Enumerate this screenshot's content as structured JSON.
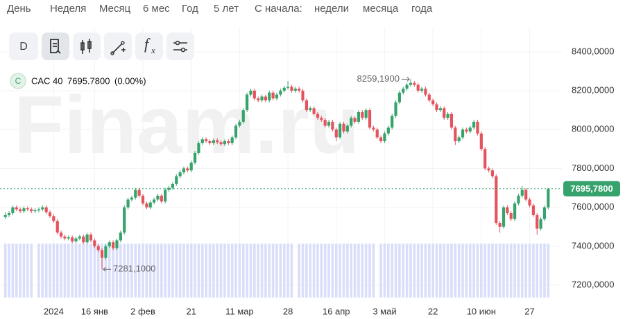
{
  "nav": {
    "items": [
      "День",
      "Неделя",
      "Месяц",
      "6 мес",
      "Год",
      "5 лет"
    ],
    "since": "С начала:",
    "since_items": [
      "недели",
      "месяца",
      "года"
    ]
  },
  "toolbar": {
    "d": "D",
    "fx_f": "f",
    "fx_x": "x"
  },
  "legend": {
    "badge": "C",
    "symbol": "CAC 40",
    "price": "7695.7800",
    "change": "(0.00%)"
  },
  "watermark": "Finam.ru",
  "chart_data": {
    "type": "candlestick",
    "up_color": "#35a36b",
    "down_color": "#e5535d",
    "volume_color": "#d9defa",
    "grid": true,
    "ylim": [
      7136,
      8524
    ],
    "yticks": [
      {
        "value": 7200,
        "label": "7200,0000"
      },
      {
        "value": 7400,
        "label": "7400,0000"
      },
      {
        "value": 7600,
        "label": "7600,0000"
      },
      {
        "value": 7800,
        "label": "7800,0000"
      },
      {
        "value": 8000,
        "label": "8000,0000"
      },
      {
        "value": 8200,
        "label": "8200,0000"
      },
      {
        "value": 8400,
        "label": "8400,0000"
      }
    ],
    "last": {
      "value": 7695.78,
      "label": "7695,7800",
      "color": "#35a36b"
    },
    "annotations": [
      {
        "index": 109,
        "value": 8259.19,
        "label": "8259,1900"
      },
      {
        "index": 26,
        "value": 7281.1,
        "label": "7281,1000"
      }
    ],
    "categories": [
      null,
      null,
      null,
      null,
      null,
      null,
      null,
      null,
      null,
      null,
      null,
      null,
      null,
      "2024",
      null,
      null,
      null,
      null,
      null,
      null,
      null,
      null,
      null,
      null,
      "16 янв",
      null,
      null,
      null,
      null,
      null,
      null,
      null,
      null,
      null,
      null,
      null,
      null,
      "2 фев",
      null,
      null,
      null,
      null,
      null,
      null,
      null,
      null,
      null,
      null,
      null,
      null,
      "21",
      null,
      null,
      null,
      null,
      null,
      null,
      null,
      null,
      null,
      null,
      null,
      null,
      "11 мар",
      null,
      null,
      null,
      null,
      null,
      null,
      null,
      null,
      null,
      null,
      null,
      null,
      "28",
      null,
      null,
      null,
      null,
      null,
      null,
      null,
      null,
      null,
      null,
      null,
      null,
      "16 апр",
      null,
      null,
      null,
      null,
      null,
      null,
      null,
      null,
      null,
      null,
      null,
      null,
      "3 май",
      null,
      null,
      null,
      null,
      null,
      null,
      null,
      null,
      null,
      null,
      null,
      null,
      "22",
      null,
      null,
      null,
      null,
      null,
      null,
      null,
      null,
      null,
      null,
      null,
      null,
      "10 июн",
      null,
      null,
      null,
      null,
      null,
      null,
      null,
      null,
      null,
      null,
      null,
      null,
      "27",
      null,
      null,
      null,
      null,
      null
    ],
    "ohlc": [
      [
        7550,
        7575,
        7540,
        7560
      ],
      [
        7560,
        7580,
        7550,
        7570
      ],
      [
        7570,
        7610,
        7560,
        7600
      ],
      [
        7600,
        7610,
        7580,
        7590
      ],
      [
        7590,
        7600,
        7570,
        7580
      ],
      [
        7580,
        7605,
        7570,
        7595
      ],
      [
        7595,
        7605,
        7580,
        7590
      ],
      [
        7590,
        7600,
        7570,
        7580
      ],
      [
        7580,
        7595,
        7570,
        7585
      ],
      [
        7585,
        7600,
        7575,
        7590
      ],
      [
        7590,
        7610,
        7580,
        7600
      ],
      [
        7600,
        7610,
        7565,
        7575
      ],
      [
        7575,
        7585,
        7545,
        7555
      ],
      [
        7555,
        7565,
        7520,
        7530
      ],
      [
        7530,
        7540,
        7460,
        7470
      ],
      [
        7470,
        7480,
        7440,
        7450
      ],
      [
        7450,
        7460,
        7430,
        7440
      ],
      [
        7440,
        7455,
        7430,
        7445
      ],
      [
        7445,
        7455,
        7415,
        7425
      ],
      [
        7425,
        7450,
        7415,
        7440
      ],
      [
        7440,
        7460,
        7430,
        7450
      ],
      [
        7450,
        7460,
        7410,
        7420
      ],
      [
        7420,
        7470,
        7410,
        7460
      ],
      [
        7460,
        7470,
        7420,
        7430
      ],
      [
        7430,
        7440,
        7390,
        7400
      ],
      [
        7400,
        7410,
        7370,
        7380
      ],
      [
        7380,
        7390,
        7281.1,
        7340
      ],
      [
        7340,
        7410,
        7330,
        7400
      ],
      [
        7400,
        7430,
        7390,
        7420
      ],
      [
        7420,
        7430,
        7380,
        7390
      ],
      [
        7390,
        7440,
        7380,
        7430
      ],
      [
        7430,
        7480,
        7420,
        7470
      ],
      [
        7470,
        7610,
        7460,
        7600
      ],
      [
        7600,
        7650,
        7590,
        7640
      ],
      [
        7640,
        7660,
        7630,
        7650
      ],
      [
        7650,
        7700,
        7640,
        7690
      ],
      [
        7690,
        7700,
        7650,
        7660
      ],
      [
        7660,
        7670,
        7610,
        7620
      ],
      [
        7620,
        7630,
        7590,
        7600
      ],
      [
        7600,
        7635,
        7590,
        7625
      ],
      [
        7625,
        7650,
        7615,
        7640
      ],
      [
        7640,
        7670,
        7630,
        7660
      ],
      [
        7660,
        7670,
        7620,
        7630
      ],
      [
        7630,
        7700,
        7620,
        7690
      ],
      [
        7690,
        7710,
        7680,
        7700
      ],
      [
        7700,
        7730,
        7690,
        7720
      ],
      [
        7720,
        7770,
        7710,
        7760
      ],
      [
        7760,
        7790,
        7750,
        7780
      ],
      [
        7780,
        7810,
        7770,
        7800
      ],
      [
        7800,
        7810,
        7780,
        7790
      ],
      [
        7790,
        7840,
        7780,
        7830
      ],
      [
        7830,
        7890,
        7820,
        7880
      ],
      [
        7880,
        7940,
        7870,
        7930
      ],
      [
        7930,
        7960,
        7920,
        7950
      ],
      [
        7950,
        7960,
        7930,
        7940
      ],
      [
        7940,
        7950,
        7920,
        7930
      ],
      [
        7930,
        7955,
        7920,
        7945
      ],
      [
        7945,
        7955,
        7925,
        7935
      ],
      [
        7935,
        7945,
        7915,
        7925
      ],
      [
        7925,
        7950,
        7915,
        7940
      ],
      [
        7940,
        7950,
        7920,
        7930
      ],
      [
        7930,
        7970,
        7920,
        7960
      ],
      [
        7960,
        8030,
        7950,
        8020
      ],
      [
        8020,
        8050,
        8010,
        8040
      ],
      [
        8040,
        8110,
        8030,
        8100
      ],
      [
        8100,
        8190,
        8090,
        8180
      ],
      [
        8180,
        8210,
        8170,
        8200
      ],
      [
        8200,
        8210,
        8150,
        8160
      ],
      [
        8160,
        8170,
        8140,
        8150
      ],
      [
        8150,
        8180,
        8140,
        8170
      ],
      [
        8170,
        8180,
        8140,
        8150
      ],
      [
        8150,
        8200,
        8140,
        8190
      ],
      [
        8190,
        8200,
        8150,
        8160
      ],
      [
        8160,
        8190,
        8150,
        8180
      ],
      [
        8180,
        8210,
        8170,
        8200
      ],
      [
        8200,
        8225,
        8190,
        8215
      ],
      [
        8215,
        8250,
        8205,
        8220
      ],
      [
        8220,
        8230,
        8190,
        8200
      ],
      [
        8200,
        8220,
        8190,
        8210
      ],
      [
        8210,
        8220,
        8190,
        8200
      ],
      [
        8200,
        8210,
        8140,
        8150
      ],
      [
        8150,
        8160,
        8090,
        8100
      ],
      [
        8100,
        8120,
        8090,
        8110
      ],
      [
        8110,
        8120,
        8070,
        8080
      ],
      [
        8080,
        8090,
        8050,
        8060
      ],
      [
        8060,
        8070,
        8040,
        8050
      ],
      [
        8050,
        8060,
        8010,
        8020
      ],
      [
        8020,
        8050,
        8010,
        8040
      ],
      [
        8040,
        8050,
        7990,
        8000
      ],
      [
        8000,
        8010,
        7940,
        7960
      ],
      [
        7960,
        8040,
        7950,
        8030
      ],
      [
        8030,
        8040,
        7980,
        7990
      ],
      [
        7990,
        8030,
        7980,
        8020
      ],
      [
        8020,
        8070,
        8010,
        8060
      ],
      [
        8060,
        8070,
        8030,
        8040
      ],
      [
        8040,
        8100,
        8030,
        8090
      ],
      [
        8090,
        8100,
        8050,
        8060
      ],
      [
        8060,
        8110,
        8050,
        8100
      ],
      [
        8100,
        8110,
        8000,
        8010
      ],
      [
        8010,
        8020,
        7990,
        8000
      ],
      [
        8000,
        8010,
        7950,
        7960
      ],
      [
        7960,
        7970,
        7930,
        7940
      ],
      [
        7940,
        7990,
        7930,
        7980
      ],
      [
        7980,
        8020,
        7970,
        8010
      ],
      [
        8010,
        8080,
        8000,
        8070
      ],
      [
        8070,
        8150,
        8060,
        8140
      ],
      [
        8140,
        8200,
        8130,
        8190
      ],
      [
        8190,
        8220,
        8180,
        8210
      ],
      [
        8210,
        8240,
        8200,
        8230
      ],
      [
        8230,
        8259.19,
        8220,
        8240
      ],
      [
        8240,
        8250,
        8220,
        8230
      ],
      [
        8230,
        8240,
        8190,
        8200
      ],
      [
        8200,
        8220,
        8190,
        8210
      ],
      [
        8210,
        8220,
        8170,
        8180
      ],
      [
        8180,
        8190,
        8140,
        8150
      ],
      [
        8150,
        8160,
        8120,
        8130
      ],
      [
        8130,
        8140,
        8090,
        8100
      ],
      [
        8100,
        8120,
        8090,
        8110
      ],
      [
        8110,
        8120,
        8050,
        8060
      ],
      [
        8060,
        8090,
        8050,
        8080
      ],
      [
        8080,
        8090,
        8000,
        8010
      ],
      [
        8010,
        8020,
        7920,
        7940
      ],
      [
        7940,
        7970,
        7930,
        7960
      ],
      [
        7960,
        8010,
        7950,
        8000
      ],
      [
        8000,
        8010,
        7980,
        7990
      ],
      [
        7990,
        8020,
        7980,
        8010
      ],
      [
        8010,
        8050,
        8000,
        8040
      ],
      [
        8040,
        8050,
        7970,
        7980
      ],
      [
        7980,
        7990,
        7890,
        7900
      ],
      [
        7900,
        7910,
        7790,
        7800
      ],
      [
        7800,
        7810,
        7780,
        7790
      ],
      [
        7790,
        7800,
        7750,
        7760
      ],
      [
        7760,
        7770,
        7510,
        7520
      ],
      [
        7520,
        7530,
        7470,
        7500
      ],
      [
        7500,
        7610,
        7490,
        7600
      ],
      [
        7600,
        7610,
        7560,
        7570
      ],
      [
        7570,
        7580,
        7530,
        7540
      ],
      [
        7540,
        7630,
        7530,
        7620
      ],
      [
        7620,
        7670,
        7610,
        7660
      ],
      [
        7660,
        7710,
        7650,
        7690
      ],
      [
        7690,
        7700,
        7630,
        7640
      ],
      [
        7640,
        7650,
        7600,
        7610
      ],
      [
        7610,
        7620,
        7550,
        7560
      ],
      [
        7560,
        7570,
        7460,
        7490
      ],
      [
        7490,
        7550,
        7480,
        7540
      ],
      [
        7540,
        7610,
        7530,
        7600
      ],
      [
        7600,
        7700,
        7590,
        7695.78
      ]
    ],
    "volume": [
      100,
      100,
      100,
      100,
      100,
      100,
      100,
      100,
      0,
      100,
      100,
      100,
      100,
      100,
      100,
      100,
      100,
      100,
      100,
      100,
      100,
      100,
      100,
      100,
      100,
      100,
      100,
      100,
      100,
      100,
      100,
      100,
      100,
      100,
      100,
      100,
      100,
      100,
      100,
      100,
      100,
      100,
      100,
      100,
      100,
      100,
      100,
      100,
      100,
      100,
      100,
      100,
      100,
      100,
      100,
      100,
      100,
      100,
      100,
      100,
      100,
      100,
      100,
      100,
      100,
      100,
      100,
      100,
      100,
      100,
      100,
      100,
      100,
      100,
      100,
      100,
      100,
      100,
      0,
      100,
      100,
      100,
      100,
      100,
      100,
      100,
      100,
      100,
      100,
      100,
      100,
      100,
      100,
      100,
      100,
      100,
      100,
      100,
      100,
      100,
      0,
      100,
      100,
      100,
      100,
      100,
      100,
      100,
      100,
      100,
      100,
      100,
      100,
      100,
      100,
      100,
      100,
      100,
      100,
      100,
      100,
      100,
      100,
      100,
      100,
      100,
      100,
      100,
      100,
      100,
      100,
      100,
      100,
      100,
      100,
      100,
      100,
      100,
      100,
      100,
      100,
      100,
      100,
      100,
      100,
      100,
      100
    ]
  }
}
